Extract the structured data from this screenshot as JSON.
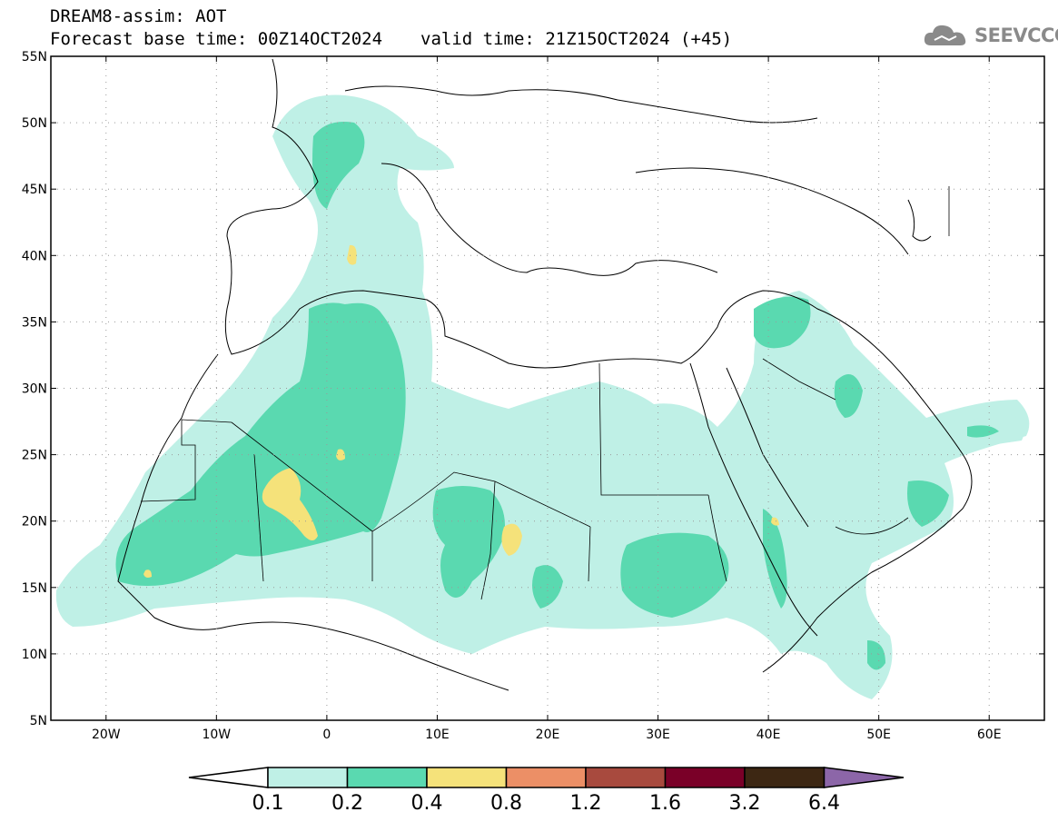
{
  "header": {
    "title": "DREAM8-assim: AOT",
    "forecast_base": "Forecast base time: 00Z14OCT2024",
    "valid_time": "valid time: 21Z15OCT2024 (+45)"
  },
  "logo": {
    "text": "SEEVCCC",
    "icon": "cloud-icon"
  },
  "map": {
    "lat_labels": [
      "55N",
      "50N",
      "45N",
      "40N",
      "35N",
      "30N",
      "25N",
      "20N",
      "15N",
      "10N",
      "5N"
    ],
    "lon_labels": [
      "20W",
      "10W",
      "0",
      "10E",
      "20E",
      "30E",
      "40E",
      "50E",
      "60E"
    ],
    "grid": "dotted"
  },
  "colorbar": {
    "labels": [
      "0.1",
      "0.2",
      "0.4",
      "0.8",
      "1.2",
      "1.6",
      "3.2",
      "6.4"
    ],
    "colors": [
      "#ffffff",
      "#bff0e6",
      "#5ad9b0",
      "#f5e27a",
      "#ec8f66",
      "#a84a3e",
      "#7a0028",
      "#3d2713",
      "#8c66a8"
    ]
  },
  "legend_levels": [
    {
      "range": "0.1-0.2",
      "color": "#bff0e6"
    },
    {
      "range": "0.2-0.4",
      "color": "#5ad9b0"
    },
    {
      "range": "0.4-0.8",
      "color": "#f5e27a"
    }
  ]
}
